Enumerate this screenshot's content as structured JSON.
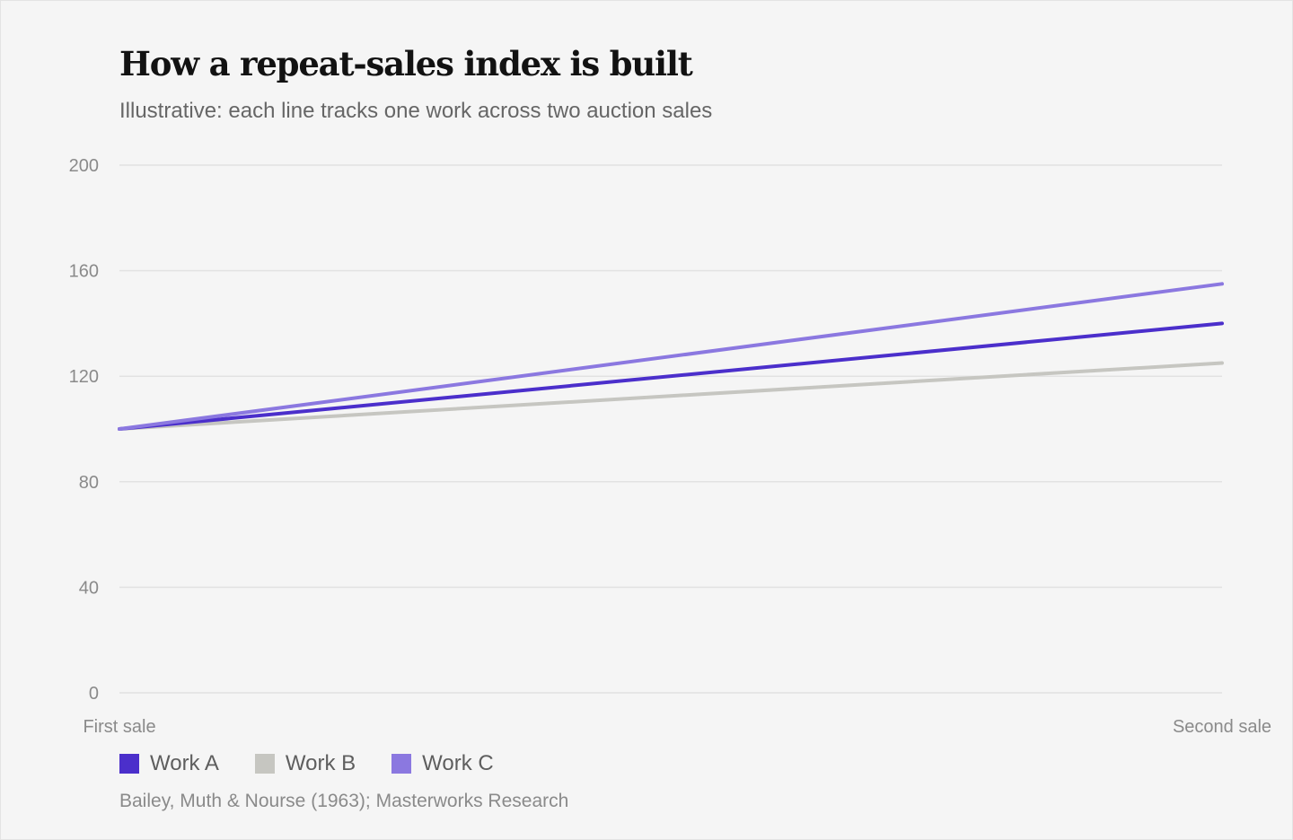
{
  "title": "How a repeat-sales index is built",
  "subtitle": "Illustrative: each line tracks one work across two auction sales",
  "source": "Bailey, Muth & Nourse (1963); Masterworks Research",
  "chart_data": {
    "type": "line",
    "categories": [
      "First sale",
      "Second sale"
    ],
    "series": [
      {
        "name": "Work A",
        "values": [
          100,
          140
        ],
        "color": "#4b2fcb"
      },
      {
        "name": "Work B",
        "values": [
          100,
          125
        ],
        "color": "#c6c6c1"
      },
      {
        "name": "Work C",
        "values": [
          100,
          155
        ],
        "color": "#8b78e0"
      }
    ],
    "yticks": [
      0,
      40,
      80,
      120,
      160,
      200
    ],
    "ylim": [
      0,
      200
    ],
    "grid": true,
    "legend": "bottom-left"
  }
}
